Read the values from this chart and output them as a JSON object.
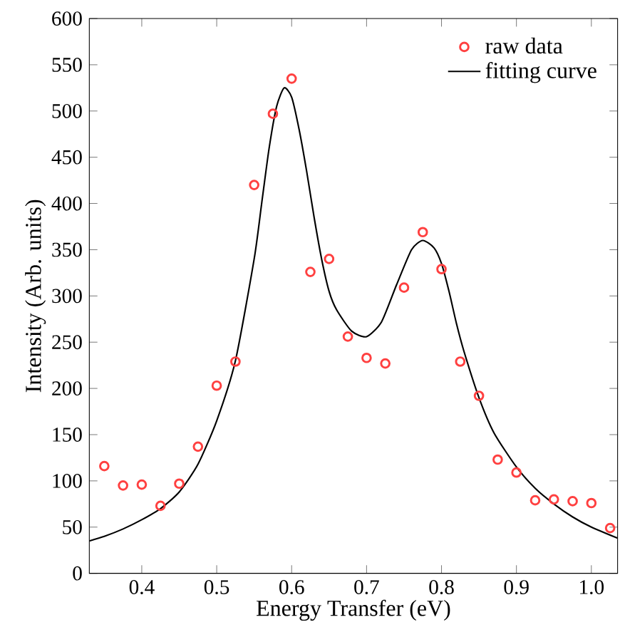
{
  "chart_data": {
    "type": "scatter",
    "xlabel": "Energy Transfer (eV)",
    "ylabel": "Intensity (Arb. units)",
    "xlim": [
      0.33,
      1.035
    ],
    "ylim": [
      0,
      600
    ],
    "xticks": [
      {
        "value": 0.4,
        "label": "0.4"
      },
      {
        "value": 0.5,
        "label": "0.5"
      },
      {
        "value": 0.6,
        "label": "0.6"
      },
      {
        "value": 0.7,
        "label": "0.7"
      },
      {
        "value": 0.8,
        "label": "0.8"
      },
      {
        "value": 0.9,
        "label": "0.9"
      },
      {
        "value": 1.0,
        "label": "1.0"
      }
    ],
    "yticks": [
      0,
      50,
      100,
      150,
      200,
      250,
      300,
      350,
      400,
      450,
      500,
      550,
      600
    ],
    "grid": false,
    "legend": "top right",
    "series": [
      {
        "name": "raw data",
        "marker": "circle",
        "color": "#ff4040",
        "x": [
          0.35,
          0.375,
          0.4,
          0.425,
          0.45,
          0.475,
          0.5,
          0.525,
          0.55,
          0.575,
          0.6,
          0.625,
          0.65,
          0.675,
          0.7,
          0.725,
          0.75,
          0.775,
          0.8,
          0.825,
          0.85,
          0.875,
          0.9,
          0.925,
          0.95,
          0.975,
          1.0,
          1.025
        ],
        "values": [
          116,
          95,
          96,
          73,
          97,
          137,
          203,
          229,
          420,
          497,
          535,
          326,
          340,
          256,
          233,
          227,
          309,
          369,
          329,
          229,
          192,
          123,
          109,
          79,
          80,
          78,
          76,
          49
        ]
      },
      {
        "name": "fitting curve",
        "type": "line",
        "marker": "none",
        "line_style": "solid",
        "color": "#000000",
        "x": [
          0.33,
          0.35,
          0.375,
          0.4,
          0.425,
          0.45,
          0.475,
          0.5,
          0.525,
          0.55,
          0.56,
          0.57,
          0.58,
          0.59,
          0.6,
          0.61,
          0.62,
          0.63,
          0.64,
          0.65,
          0.66,
          0.68,
          0.7,
          0.72,
          0.74,
          0.76,
          0.775,
          0.79,
          0.8,
          0.81,
          0.82,
          0.83,
          0.85,
          0.87,
          0.9,
          0.925,
          0.95,
          0.975,
          1.0,
          1.035
        ],
        "values": [
          35,
          40,
          48,
          58,
          70,
          88,
          118,
          165,
          230,
          340,
          400,
          460,
          505,
          525,
          515,
          480,
          435,
          385,
          340,
          305,
          285,
          262,
          256,
          272,
          312,
          350,
          360,
          352,
          335,
          305,
          270,
          240,
          190,
          152,
          115,
          92,
          75,
          61,
          50,
          38
        ]
      }
    ]
  }
}
